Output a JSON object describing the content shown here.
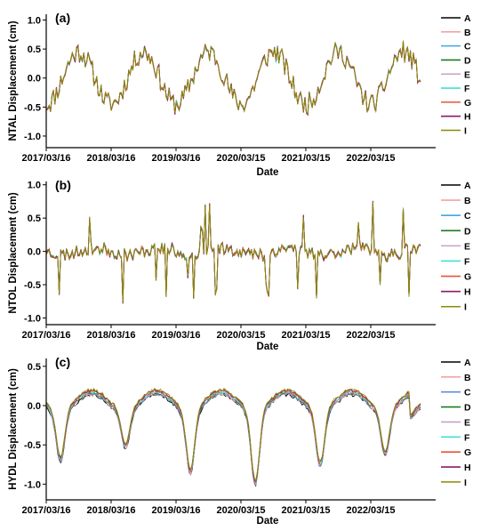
{
  "chart_data": [
    {
      "type": "line",
      "panel_label": "(a)",
      "ylabel": "NTAL Displacement (cm)",
      "xlabel": "Date",
      "x_ticks": [
        "2017/03/16",
        "2018/03/16",
        "2019/03/16",
        "2020/03/15",
        "2021/03/15",
        "2022/03/15"
      ],
      "y_ticks": [
        "-1.0",
        "-0.5",
        "0.0",
        "0.5",
        "1.0"
      ],
      "ylim": [
        -1.2,
        1.1
      ],
      "xlim": [
        "2017/03/16",
        "2023/03/15"
      ],
      "legend_position": "right",
      "series": [
        {
          "name": "A",
          "color": "#000000"
        },
        {
          "name": "B",
          "color": "#f4a3a3"
        },
        {
          "name": "C",
          "color": "#3fa9e0"
        },
        {
          "name": "D",
          "color": "#1f7a1f"
        },
        {
          "name": "E",
          "color": "#c8a2c8"
        },
        {
          "name": "F",
          "color": "#40e0d0"
        },
        {
          "name": "G",
          "color": "#e8533a"
        },
        {
          "name": "H",
          "color": "#8b1a6b"
        },
        {
          "name": "I",
          "color": "#8b8b00"
        }
      ],
      "shape": {
        "offset": 0.0,
        "amplitude": 0.45,
        "phase": 0.75,
        "noise": 0.18,
        "spike_rate": 0.0,
        "spike_size": 0.0,
        "trend": 0.0,
        "seed": 11
      }
    },
    {
      "type": "line",
      "panel_label": "(b)",
      "ylabel": "NTOL Displacement (cm)",
      "xlabel": "Date",
      "x_ticks": [
        "2017/03/16",
        "2018/03/16",
        "2019/03/16",
        "2020/03/15",
        "2021/03/15",
        "2022/03/15"
      ],
      "y_ticks": [
        "-1.0",
        "-0.5",
        "0.0",
        "0.5",
        "1.0"
      ],
      "ylim": [
        -1.1,
        1.05
      ],
      "xlim": [
        "2017/03/16",
        "2023/03/15"
      ],
      "legend_position": "right",
      "series": [
        {
          "name": "A",
          "color": "#000000"
        },
        {
          "name": "B",
          "color": "#f4a3a3"
        },
        {
          "name": "C",
          "color": "#3fa9e0"
        },
        {
          "name": "D",
          "color": "#1f7a1f"
        },
        {
          "name": "E",
          "color": "#c8a2c8"
        },
        {
          "name": "F",
          "color": "#40e0d0"
        },
        {
          "name": "G",
          "color": "#e8533a"
        },
        {
          "name": "H",
          "color": "#8b1a6b"
        },
        {
          "name": "I",
          "color": "#8b8b00"
        }
      ],
      "shape": {
        "offset": 0.0,
        "amplitude": 0.05,
        "phase": 0.5,
        "noise": 0.09,
        "spike_rate": 0.06,
        "spike_size": 0.7,
        "trend": 0.0,
        "seed": 23
      }
    },
    {
      "type": "line",
      "panel_label": "(c)",
      "ylabel": "HYDL Displacement (cm)",
      "xlabel": "Date",
      "x_ticks": [
        "2017/03/16",
        "2018/03/16",
        "2019/03/16",
        "2020/03/15",
        "2021/03/15",
        "2022/03/15"
      ],
      "y_ticks": [
        "-1.0",
        "-0.5",
        "0.0",
        "0.5"
      ],
      "ylim": [
        -1.2,
        0.6
      ],
      "xlim": [
        "2017/03/16",
        "2023/03/15"
      ],
      "legend_position": "right",
      "series": [
        {
          "name": "A",
          "color": "#000000"
        },
        {
          "name": "B",
          "color": "#f4a3a3"
        },
        {
          "name": "C",
          "color": "#5a8de0"
        },
        {
          "name": "D",
          "color": "#1f7a1f"
        },
        {
          "name": "E",
          "color": "#c8a2c8"
        },
        {
          "name": "F",
          "color": "#40e0d0"
        },
        {
          "name": "G",
          "color": "#e8533a"
        },
        {
          "name": "H",
          "color": "#8b1a6b"
        },
        {
          "name": "I",
          "color": "#8b8b00"
        }
      ],
      "shape": {
        "hydl": true,
        "seed": 37
      }
    }
  ]
}
